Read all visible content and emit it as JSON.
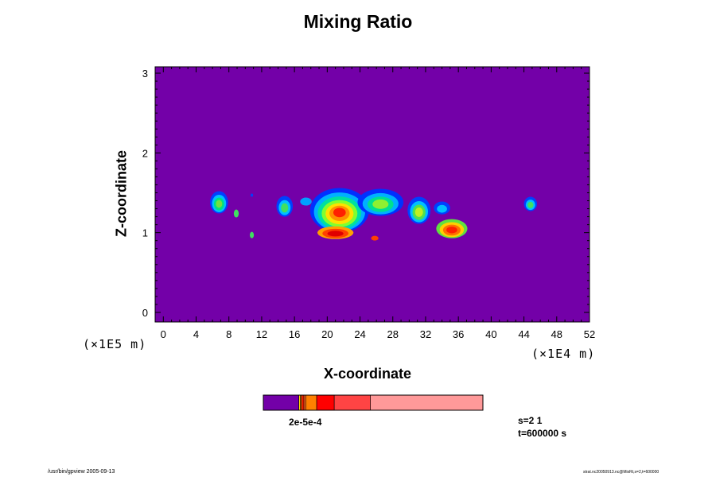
{
  "chart_data": {
    "type": "heatmap",
    "title": "Mixing Ratio",
    "xlabel": "X-coordinate",
    "ylabel": "Z-coordinate",
    "x_scale_note": "(×1E4 m)",
    "y_scale_note": "(×1E5 m)",
    "xlim": [
      -1,
      52
    ],
    "ylim": [
      -0.12,
      3.08
    ],
    "x_ticks": [
      "0",
      "4",
      "8",
      "12",
      "16",
      "20",
      "24",
      "28",
      "32",
      "36",
      "40",
      "44",
      "48",
      "52"
    ],
    "y_ticks": [
      "0",
      "1",
      "2",
      "3"
    ],
    "background_color": "#7300a8",
    "blobs": [
      {
        "x": 6.8,
        "z": 1.38,
        "rx": 1.1,
        "rz": 0.14,
        "colors": [
          "#0040ff",
          "#00c0ff",
          "#00e080",
          "#70e040"
        ]
      },
      {
        "x": 8.9,
        "z": 1.24,
        "rx": 0.3,
        "rz": 0.05,
        "colors": [
          "#40e060"
        ]
      },
      {
        "x": 10.8,
        "z": 0.97,
        "rx": 0.25,
        "rz": 0.04,
        "colors": [
          "#40e060"
        ]
      },
      {
        "x": 14.8,
        "z": 1.33,
        "rx": 1.0,
        "rz": 0.13,
        "colors": [
          "#0040ff",
          "#00c0ff",
          "#40e060"
        ]
      },
      {
        "x": 17.4,
        "z": 1.39,
        "rx": 0.7,
        "rz": 0.05,
        "colors": [
          "#00a0ff"
        ]
      },
      {
        "x": 21.5,
        "z": 1.28,
        "rx": 3.6,
        "rz": 0.28,
        "colors": [
          "#0030ff",
          "#00b0ff",
          "#00e0a0",
          "#80ff30",
          "#ffe000",
          "#ff9000",
          "#ff2000"
        ]
      },
      {
        "x": 26.5,
        "z": 1.38,
        "rx": 2.8,
        "rz": 0.17,
        "colors": [
          "#0030ff",
          "#00b0ff",
          "#00e090",
          "#90f030"
        ]
      },
      {
        "x": 21.0,
        "z": 1.0,
        "rx": 2.2,
        "rz": 0.08,
        "colors": [
          "#ffa000",
          "#ff4000",
          "#e00000"
        ]
      },
      {
        "x": 25.8,
        "z": 0.93,
        "rx": 0.45,
        "rz": 0.03,
        "colors": [
          "#ff4000"
        ]
      },
      {
        "x": 31.2,
        "z": 1.28,
        "rx": 1.4,
        "rz": 0.17,
        "colors": [
          "#0040ff",
          "#00c0ff",
          "#50e050",
          "#c0f020"
        ]
      },
      {
        "x": 34.0,
        "z": 1.31,
        "rx": 1.0,
        "rz": 0.08,
        "colors": [
          "#0040ff",
          "#00c0ff"
        ]
      },
      {
        "x": 35.2,
        "z": 1.05,
        "rx": 1.9,
        "rz": 0.12,
        "colors": [
          "#60e040",
          "#ffd000",
          "#ff7000",
          "#ff2000"
        ]
      },
      {
        "x": 44.8,
        "z": 1.36,
        "rx": 0.8,
        "rz": 0.09,
        "colors": [
          "#0040ff",
          "#00c0ff",
          "#40e060"
        ]
      },
      {
        "x": 10.8,
        "z": 1.47,
        "rx": 0.15,
        "rz": 0.02,
        "colors": [
          "#0040ff"
        ]
      }
    ]
  },
  "colorbar": {
    "segments": [
      {
        "color": "#7300a8",
        "width": 0.162
      },
      {
        "color": "#ffe000",
        "width": 0.006
      },
      {
        "color": "#ff9000",
        "width": 0.006
      },
      {
        "color": "#ff2000",
        "width": 0.011
      },
      {
        "color": "#ff6020",
        "width": 0.008
      },
      {
        "color": "#ff8000",
        "width": 0.05
      },
      {
        "color": "#ff0000",
        "width": 0.08
      },
      {
        "color": "#ff4444",
        "width": 0.165
      },
      {
        "color": "#ff9999",
        "width": 0.512
      }
    ],
    "label": "2e-5e-4"
  },
  "info": {
    "line1": "s=2 1",
    "line2": "t=600000 s"
  },
  "footer": {
    "left": "/usr/bin/gpview 2005-09-13",
    "right": "strat.nc20050913.nc@MixRt,s=2,t=600000"
  }
}
